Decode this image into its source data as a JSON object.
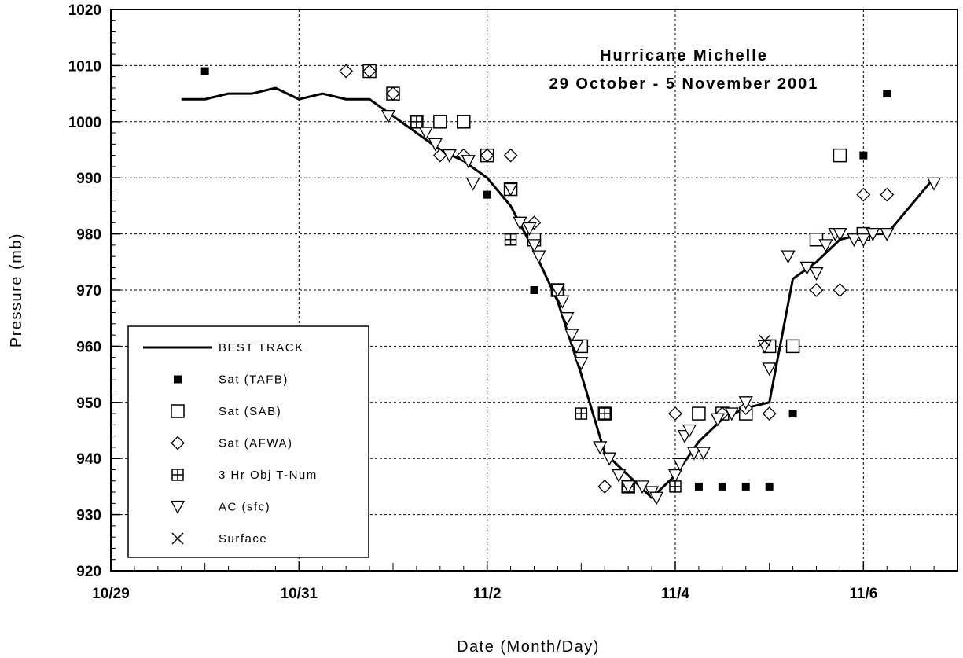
{
  "chart_data": {
    "type": "scatter",
    "title": "Hurricane Michelle",
    "subtitle": "29 October - 5 November 2001",
    "xlabel": "Date (Month/Day)",
    "ylabel": "Pressure (mb)",
    "x_unit": "days after 10/29",
    "xlim": [
      0,
      9
    ],
    "ylim": [
      920,
      1020
    ],
    "x_ticks": [
      {
        "value": 0,
        "label": "10/29"
      },
      {
        "value": 2,
        "label": "10/31"
      },
      {
        "value": 4,
        "label": "11/2"
      },
      {
        "value": 6,
        "label": "11/4"
      },
      {
        "value": 8,
        "label": "11/6"
      }
    ],
    "y_ticks": [
      920,
      930,
      940,
      950,
      960,
      970,
      980,
      990,
      1000,
      1010,
      1020
    ],
    "grid": true,
    "legend_position": "bottom-left",
    "series": [
      {
        "name": "BEST TRACK",
        "marker": "line",
        "x": [
          0.75,
          1.0,
          1.25,
          1.5,
          1.75,
          2.0,
          2.25,
          2.5,
          2.75,
          3.0,
          3.25,
          3.5,
          3.75,
          4.0,
          4.25,
          4.5,
          4.75,
          5.0,
          5.25,
          5.5,
          5.75,
          6.0,
          6.25,
          6.5,
          6.75,
          7.0,
          7.25,
          7.5,
          7.75,
          8.0,
          8.25,
          8.5,
          8.75
        ],
        "y": [
          1004,
          1004,
          1005,
          1005,
          1006,
          1004,
          1005,
          1004,
          1004,
          1001,
          998,
          995,
          993,
          990,
          985,
          977,
          968,
          955,
          941,
          937,
          933,
          937,
          943,
          947,
          949,
          950,
          972,
          975,
          979,
          980,
          980,
          985,
          990
        ]
      },
      {
        "name": "Sat (TAFB)",
        "marker": "filled-square",
        "x": [
          1.0,
          4.0,
          4.25,
          4.5,
          5.0,
          5.25,
          6.0,
          6.25,
          6.5,
          6.75,
          7.0,
          7.25,
          8.0,
          8.25
        ],
        "y": [
          1009,
          987,
          979,
          970,
          960,
          948,
          935,
          935,
          935,
          935,
          935,
          948,
          994,
          1005
        ]
      },
      {
        "name": "Sat (SAB)",
        "marker": "open-square",
        "x": [
          2.75,
          3.0,
          3.25,
          3.5,
          3.75,
          4.0,
          4.25,
          4.5,
          4.75,
          5.0,
          5.25,
          5.5,
          6.25,
          6.5,
          6.75,
          7.0,
          7.25,
          7.5,
          7.75,
          8.0
        ],
        "y": [
          1009,
          1005,
          1000,
          1000,
          1000,
          994,
          988,
          979,
          970,
          960,
          948,
          935,
          948,
          948,
          948,
          960,
          960,
          979,
          994,
          980
        ]
      },
      {
        "name": "Sat (AFWA)",
        "marker": "open-diamond",
        "x": [
          2.5,
          2.75,
          3.0,
          3.25,
          3.5,
          3.75,
          4.0,
          4.25,
          4.5,
          5.25,
          5.5,
          6.0,
          6.5,
          6.75,
          7.0,
          7.5,
          7.75,
          8.0,
          8.25
        ],
        "y": [
          1009,
          1009,
          1005,
          1000,
          994,
          994,
          994,
          994,
          982,
          935,
          935,
          948,
          948,
          949,
          948,
          970,
          970,
          987,
          987
        ]
      },
      {
        "name": "3 Hr Obj T-Num",
        "marker": "crossed-square",
        "x": [
          3.25,
          4.25,
          4.75,
          5.0,
          5.25,
          5.5,
          6.0
        ],
        "y": [
          1000,
          979,
          970,
          948,
          948,
          935,
          935
        ]
      },
      {
        "name": "AC (sfc)",
        "marker": "open-triangle-down",
        "x": [
          2.95,
          3.35,
          3.45,
          3.6,
          3.8,
          3.85,
          4.25,
          4.35,
          4.45,
          4.5,
          4.55,
          4.75,
          4.8,
          4.85,
          4.9,
          4.95,
          5.0,
          5.2,
          5.3,
          5.4,
          5.5,
          5.65,
          5.75,
          5.8,
          6.0,
          6.05,
          6.1,
          6.15,
          6.2,
          6.3,
          6.45,
          6.6,
          6.75,
          6.95,
          7.0,
          7.2,
          7.4,
          7.5,
          7.6,
          7.7,
          7.75,
          7.9,
          8.0,
          8.1,
          8.25,
          8.75
        ],
        "y": [
          1001,
          998,
          996,
          994,
          993,
          989,
          988,
          982,
          981,
          978,
          976,
          970,
          968,
          965,
          962,
          960,
          957,
          942,
          940,
          937,
          935,
          935,
          934,
          933,
          937,
          939,
          944,
          945,
          941,
          941,
          947,
          948,
          950,
          960,
          956,
          976,
          974,
          973,
          978,
          980,
          980,
          979,
          979,
          980,
          980,
          989
        ]
      },
      {
        "name": "Surface",
        "marker": "x",
        "x": [
          6.95
        ],
        "y": [
          961
        ]
      }
    ]
  }
}
